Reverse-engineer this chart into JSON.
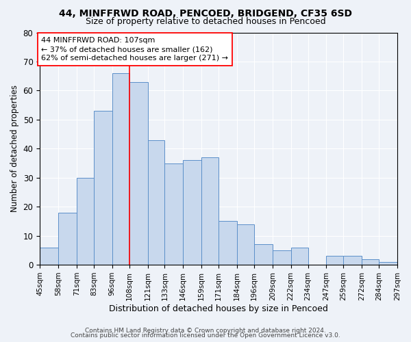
{
  "title_line1": "44, MINFFRWD ROAD, PENCOED, BRIDGEND, CF35 6SD",
  "title_line2": "Size of property relative to detached houses in Pencoed",
  "xlabel": "Distribution of detached houses by size in Pencoed",
  "ylabel": "Number of detached properties",
  "bar_values": [
    6,
    18,
    30,
    53,
    66,
    63,
    43,
    35,
    36,
    37,
    15,
    14,
    7,
    5,
    6,
    0,
    3,
    3,
    2,
    1
  ],
  "bin_edges": [
    45,
    58,
    71,
    83,
    96,
    108,
    121,
    133,
    146,
    159,
    171,
    184,
    196,
    209,
    222,
    234,
    247,
    259,
    272,
    284,
    297
  ],
  "tick_labels": [
    "45sqm",
    "58sqm",
    "71sqm",
    "83sqm",
    "96sqm",
    "108sqm",
    "121sqm",
    "133sqm",
    "146sqm",
    "159sqm",
    "171sqm",
    "184sqm",
    "196sqm",
    "209sqm",
    "222sqm",
    "234sqm",
    "247sqm",
    "259sqm",
    "272sqm",
    "284sqm",
    "297sqm"
  ],
  "bar_color": "#c8d8ed",
  "bar_edge_color": "#5b8fc9",
  "red_line_x": 108,
  "ylim": [
    0,
    80
  ],
  "yticks": [
    0,
    10,
    20,
    30,
    40,
    50,
    60,
    70,
    80
  ],
  "annotation_text_line1": "44 MINFFRWD ROAD: 107sqm",
  "annotation_text_line2": "← 37% of detached houses are smaller (162)",
  "annotation_text_line3": "62% of semi-detached houses are larger (271) →",
  "footer_line1": "Contains HM Land Registry data © Crown copyright and database right 2024.",
  "footer_line2": "Contains public sector information licensed under the Open Government Licence v3.0.",
  "background_color": "#eef2f8",
  "plot_bg_color": "#eef2f8",
  "title_fontsize": 10,
  "subtitle_fontsize": 9,
  "ylabel_fontsize": 8.5,
  "xlabel_fontsize": 9,
  "tick_fontsize": 7.5,
  "ytick_fontsize": 8.5,
  "annotation_fontsize": 8,
  "footer_fontsize": 6.5
}
